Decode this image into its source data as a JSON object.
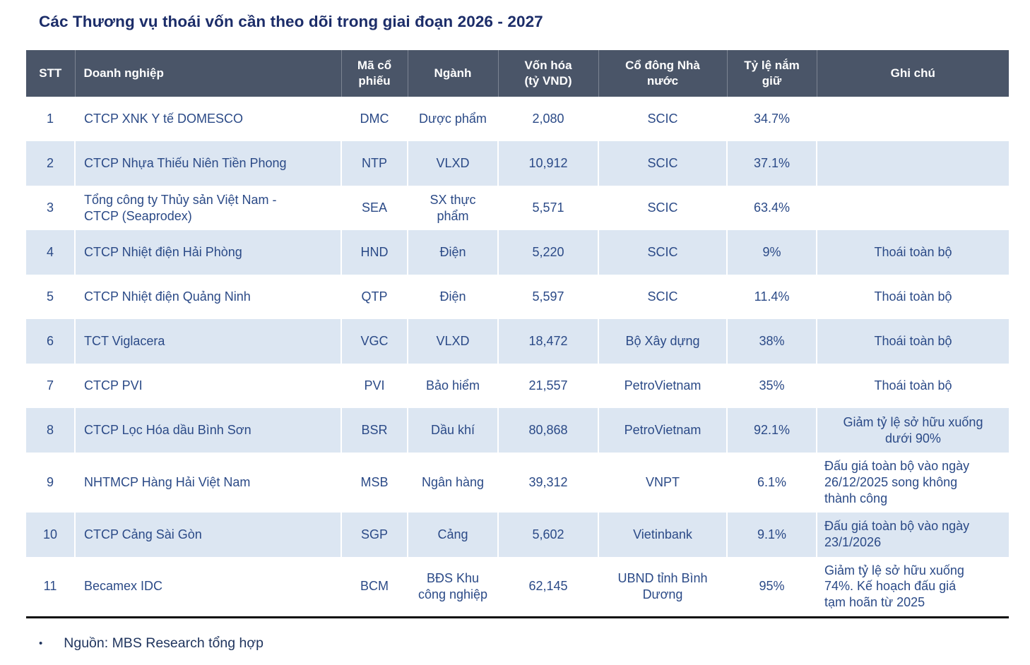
{
  "title": "Các Thương vụ thoái vốn cần theo dõi trong giai đoạn 2026 - 2027",
  "source_note": "Nguồn: MBS Research tổng hợp",
  "colors": {
    "header_bg": "#4a5568",
    "row_alt_bg": "#dce6f2",
    "body_text": "#2b4a87",
    "title_text": "#1c2d69",
    "header_text": "#ffffff",
    "bottom_rule": "#0a0a0a"
  },
  "table": {
    "columns": [
      {
        "key": "stt",
        "label": "STT"
      },
      {
        "key": "company",
        "label": "Doanh nghiệp"
      },
      {
        "key": "ticker",
        "label": "Mã cổ\nphiếu"
      },
      {
        "key": "industry",
        "label": "Ngành"
      },
      {
        "key": "market_cap",
        "label": "Vốn hóa\n(tỷ VND)"
      },
      {
        "key": "state_owner",
        "label": "Cổ đông Nhà\nnước"
      },
      {
        "key": "stake",
        "label": "Tỷ lệ nắm\ngiữ"
      },
      {
        "key": "note",
        "label": "Ghi chú"
      }
    ],
    "rows": [
      {
        "stt": "1",
        "company": "CTCP XNK Y tế DOMESCO",
        "ticker": "DMC",
        "industry": "Dược phẩm",
        "market_cap": "2,080",
        "state_owner": "SCIC",
        "stake": "34.7%",
        "note": "",
        "note_align": "center"
      },
      {
        "stt": "2",
        "company": "CTCP Nhựa Thiếu Niên Tiền Phong",
        "ticker": "NTP",
        "industry": "VLXD",
        "market_cap": "10,912",
        "state_owner": "SCIC",
        "stake": "37.1%",
        "note": "",
        "note_align": "center"
      },
      {
        "stt": "3",
        "company": "Tổng công ty Thủy sản Việt Nam -\nCTCP (Seaprodex)",
        "ticker": "SEA",
        "industry": "SX thực\nphẩm",
        "market_cap": "5,571",
        "state_owner": "SCIC",
        "stake": "63.4%",
        "note": "",
        "note_align": "center"
      },
      {
        "stt": "4",
        "company": "CTCP Nhiệt điện Hải Phòng",
        "ticker": "HND",
        "industry": "Điện",
        "market_cap": "5,220",
        "state_owner": "SCIC",
        "stake": "9%",
        "note": "Thoái toàn bộ",
        "note_align": "center"
      },
      {
        "stt": "5",
        "company": "CTCP Nhiệt điện Quảng Ninh",
        "ticker": "QTP",
        "industry": "Điện",
        "market_cap": "5,597",
        "state_owner": "SCIC",
        "stake": "11.4%",
        "note": "Thoái toàn bộ",
        "note_align": "center"
      },
      {
        "stt": "6",
        "company": "TCT Viglacera",
        "ticker": "VGC",
        "industry": "VLXD",
        "market_cap": "18,472",
        "state_owner": "Bộ Xây dựng",
        "stake": "38%",
        "note": "Thoái toàn bộ",
        "note_align": "center"
      },
      {
        "stt": "7",
        "company": "CTCP PVI",
        "ticker": "PVI",
        "industry": "Bảo hiểm",
        "market_cap": "21,557",
        "state_owner": "PetroVietnam",
        "stake": "35%",
        "note": "Thoái toàn bộ",
        "note_align": "center"
      },
      {
        "stt": "8",
        "company": "CTCP Lọc Hóa dầu Bình Sơn",
        "ticker": "BSR",
        "industry": "Dầu khí",
        "market_cap": "80,868",
        "state_owner": "PetroVietnam",
        "stake": "92.1%",
        "note": "Giảm tỷ lệ sở hữu xuống\ndưới 90%",
        "note_align": "center"
      },
      {
        "stt": "9",
        "company": "NHTMCP Hàng Hải Việt Nam",
        "ticker": "MSB",
        "industry": "Ngân hàng",
        "market_cap": "39,312",
        "state_owner": "VNPT",
        "stake": "6.1%",
        "note": "Đấu giá toàn bộ vào ngày\n26/12/2025 song không\nthành công",
        "note_align": "left"
      },
      {
        "stt": "10",
        "company": "CTCP Cảng Sài Gòn",
        "ticker": "SGP",
        "industry": "Cảng",
        "market_cap": "5,602",
        "state_owner": "Vietinbank",
        "stake": "9.1%",
        "note": "Đấu giá toàn bộ vào ngày\n23/1/2026",
        "note_align": "left"
      },
      {
        "stt": "11",
        "company": "Becamex IDC",
        "ticker": "BCM",
        "industry": "BĐS Khu\ncông nghiệp",
        "market_cap": "62,145",
        "state_owner": "UBND tỉnh Bình\nDương",
        "stake": "95%",
        "note": "Giảm tỷ lệ sở hữu xuống\n74%. Kế hoạch đấu giá\ntạm hoãn từ 2025",
        "note_align": "left"
      }
    ]
  }
}
